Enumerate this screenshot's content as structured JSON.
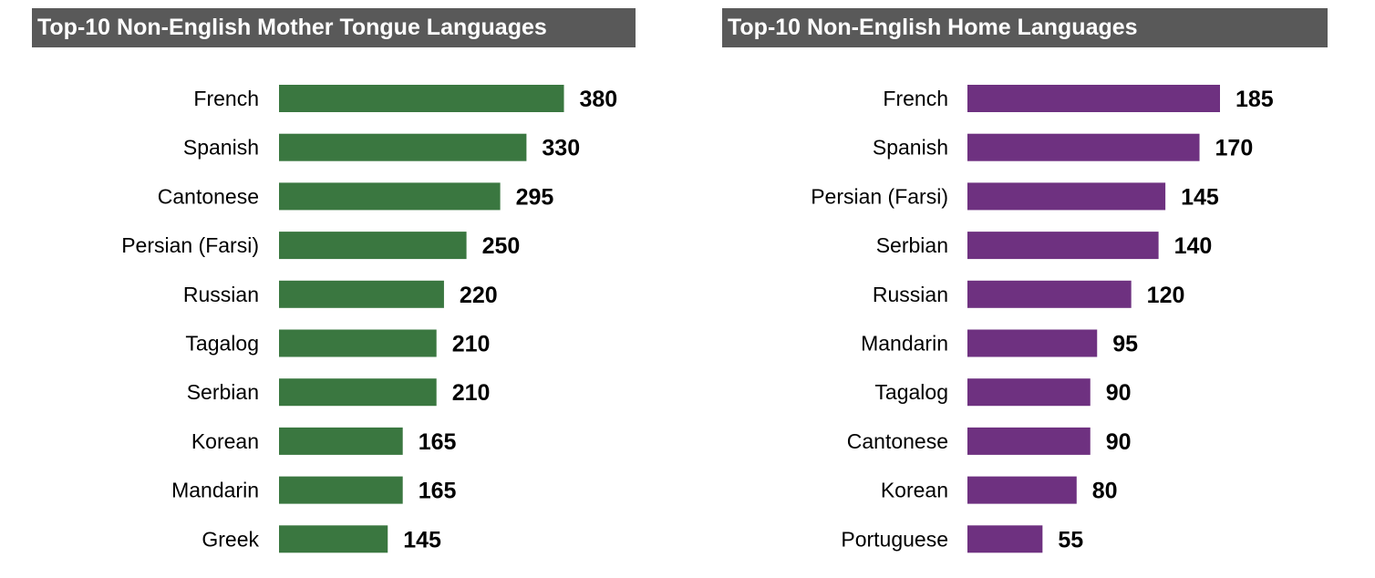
{
  "chart_data": [
    {
      "type": "bar",
      "orientation": "horizontal",
      "title": "Top-10 Non-English Mother Tongue Languages",
      "categories": [
        "French",
        "Spanish",
        "Cantonese",
        "Persian (Farsi)",
        "Russian",
        "Tagalog",
        "Serbian",
        "Korean",
        "Mandarin",
        "Greek"
      ],
      "values": [
        380,
        330,
        295,
        250,
        220,
        210,
        210,
        165,
        165,
        145
      ],
      "color": "#3a7740",
      "xlabel": "",
      "ylabel": "",
      "grid": false,
      "legend": "none"
    },
    {
      "type": "bar",
      "orientation": "horizontal",
      "title": "Top-10 Non-English Home Languages",
      "categories": [
        "French",
        "Spanish",
        "Persian (Farsi)",
        "Serbian",
        "Russian",
        "Mandarin",
        "Tagalog",
        "Cantonese",
        "Korean",
        "Portuguese"
      ],
      "values": [
        185,
        170,
        145,
        140,
        120,
        95,
        90,
        90,
        80,
        55
      ],
      "color": "#6e3180",
      "xlabel": "",
      "ylabel": "",
      "grid": false,
      "legend": "none"
    }
  ]
}
